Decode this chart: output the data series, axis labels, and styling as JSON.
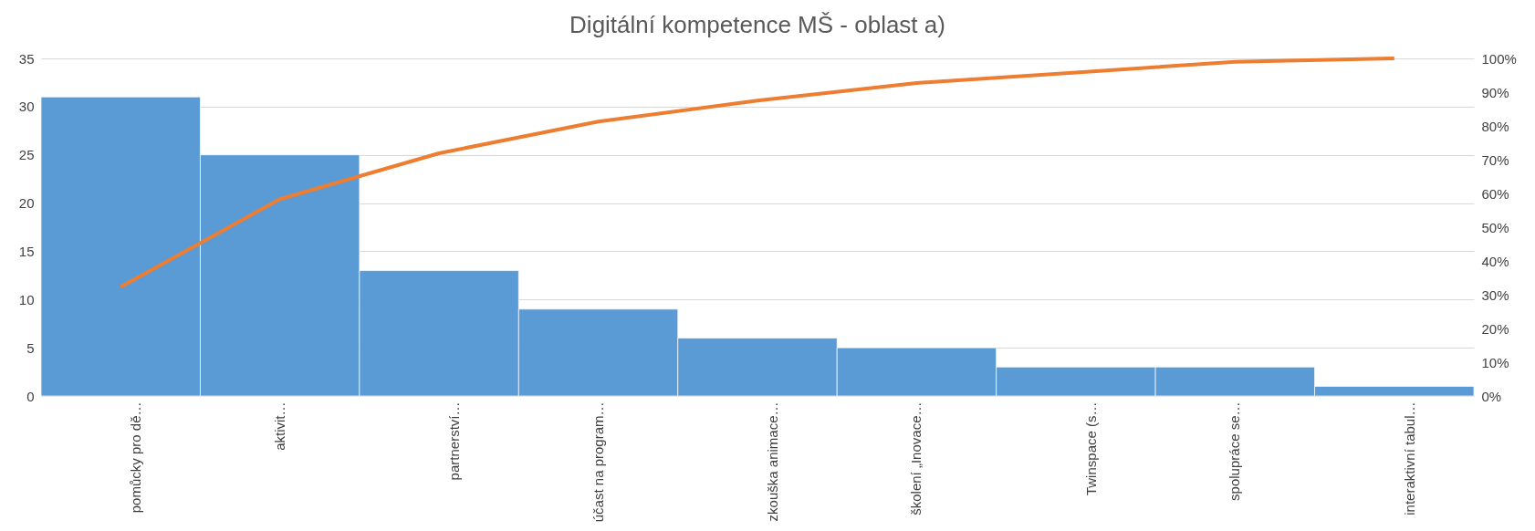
{
  "chart_data": {
    "type": "bar",
    "title": "Digitální kompetence MŠ - oblast a)",
    "categories": [
      "pomůcky pro dě…",
      "aktivit…",
      "partnerství…",
      "účast na program…",
      "zkouška animace…",
      "školení „Inovace…",
      "Twinspace (s…",
      "spolupráce se…",
      "interaktivní tabul…"
    ],
    "series": [
      {
        "color": "#5b9bd5",
        "values": [
          31,
          25,
          13,
          9,
          6,
          5,
          3,
          3,
          1
        ]
      },
      {
        "type": "line",
        "axis": "y2",
        "color": "#ed7d31",
        "values": [
          32.3,
          58.3,
          71.9,
          81.3,
          87.5,
          92.7,
          95.8,
          99.0,
          100
        ]
      }
    ],
    "ylim": [
      0,
      35
    ],
    "yticks": [
      0,
      5,
      10,
      15,
      20,
      25,
      30,
      35
    ],
    "y2lim": [
      0,
      100
    ],
    "y2ticks": [
      {
        "value": 0,
        "label": "0%"
      },
      {
        "value": 10,
        "label": "10%"
      },
      {
        "value": 20,
        "label": "20%"
      },
      {
        "value": 30,
        "label": "30%"
      },
      {
        "value": 40,
        "label": "40%"
      },
      {
        "value": 50,
        "label": "50%"
      },
      {
        "value": 60,
        "label": "60%"
      },
      {
        "value": 70,
        "label": "70%"
      },
      {
        "value": 80,
        "label": "80%"
      },
      {
        "value": 90,
        "label": "90%"
      },
      {
        "value": 100,
        "label": "100%"
      }
    ],
    "grid": "y",
    "marker": "none",
    "line_style": "solid"
  }
}
